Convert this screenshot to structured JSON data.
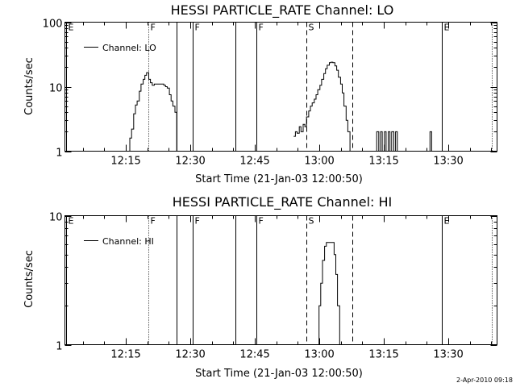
{
  "window": {
    "timestamp": "2-Apr-2010 09:18"
  },
  "colors": {
    "background": "#ffffff",
    "foreground": "#000000"
  },
  "chart_data": [
    {
      "type": "line",
      "title": "HESSI PARTICLE_RATE Channel: LO",
      "xlabel": "Start Time (21-Jan-03 12:00:50)",
      "ylabel": "Counts/sec",
      "yscale": "log",
      "xlim": [
        0,
        100.5
      ],
      "ylim": [
        1,
        100
      ],
      "x_units": "minutes after 12:00:50",
      "x_ticks": [
        14.17,
        29.17,
        44.17,
        59.17,
        74.17,
        89.17
      ],
      "x_tick_labels": [
        "12:15",
        "12:30",
        "12:45",
        "13:00",
        "13:15",
        "13:30"
      ],
      "y_ticks": [
        1,
        10,
        100
      ],
      "y_tick_labels": [
        "1",
        "10",
        "100"
      ],
      "legend": {
        "position": "top-left",
        "entries": [
          "Channel: LO"
        ]
      },
      "grid": false,
      "markers": [
        {
          "x": 0.3,
          "label": "E",
          "style": "solid"
        },
        {
          "x": 19.4,
          "label": "F",
          "style": "dotted"
        },
        {
          "x": 25.9,
          "label": "",
          "style": "solid"
        },
        {
          "x": 29.8,
          "label": "F",
          "style": "solid"
        },
        {
          "x": 39.7,
          "label": "",
          "style": "solid"
        },
        {
          "x": 44.6,
          "label": "F",
          "style": "solid"
        },
        {
          "x": 56.2,
          "label": "S",
          "style": "dashed"
        },
        {
          "x": 66.9,
          "label": "",
          "style": "dashed"
        },
        {
          "x": 87.6,
          "label": "E",
          "style": "solid"
        },
        {
          "x": 99.2,
          "label": "",
          "style": "dotted"
        }
      ],
      "series": [
        {
          "name": "Channel: LO",
          "segments": [
            [
              [
                14.6,
                1
              ],
              [
                15.1,
                1.6
              ],
              [
                15.5,
                2.2
              ],
              [
                16.0,
                3.8
              ],
              [
                16.4,
                5.2
              ],
              [
                16.8,
                6.0
              ],
              [
                17.3,
                8.5
              ],
              [
                17.7,
                11.0
              ],
              [
                18.2,
                13.0
              ],
              [
                18.6,
                15.0
              ],
              [
                19.0,
                16.5
              ],
              [
                19.5,
                13.0
              ],
              [
                19.9,
                11.5
              ],
              [
                20.3,
                10.5
              ],
              [
                20.8,
                11.0
              ],
              [
                21.2,
                11.0
              ],
              [
                21.6,
                11.0
              ],
              [
                22.1,
                11.0
              ],
              [
                22.5,
                11.0
              ],
              [
                23.0,
                10.5
              ],
              [
                23.4,
                10.0
              ],
              [
                23.8,
                9.5
              ],
              [
                24.3,
                7.5
              ],
              [
                24.7,
                6.0
              ],
              [
                25.1,
                5.0
              ],
              [
                25.6,
                4.0
              ],
              [
                26.0,
                1
              ]
            ],
            [
              [
                53.2,
                1.7
              ],
              [
                53.6,
                2.0
              ],
              [
                54.0,
                1.9
              ],
              [
                54.5,
                2.4
              ],
              [
                54.9,
                2.0
              ],
              [
                55.4,
                2.6
              ],
              [
                55.8,
                2.4
              ],
              [
                56.2,
                3.4
              ],
              [
                56.7,
                4.2
              ],
              [
                57.1,
                5.0
              ],
              [
                57.5,
                5.6
              ],
              [
                58.0,
                6.4
              ],
              [
                58.4,
                7.5
              ],
              [
                58.8,
                9.0
              ],
              [
                59.3,
                10.5
              ],
              [
                59.7,
                13.0
              ],
              [
                60.2,
                16.0
              ],
              [
                60.6,
                19.0
              ],
              [
                61.0,
                21.5
              ],
              [
                61.5,
                23.5
              ],
              [
                61.9,
                24.0
              ],
              [
                62.3,
                23.5
              ],
              [
                62.8,
                21.0
              ],
              [
                63.2,
                18.0
              ],
              [
                63.6,
                14.0
              ],
              [
                64.1,
                11.0
              ],
              [
                64.5,
                8.0
              ],
              [
                64.9,
                5.0
              ],
              [
                65.4,
                3.0
              ],
              [
                65.8,
                2.0
              ],
              [
                66.3,
                1
              ]
            ],
            [
              [
                72.1,
                1
              ],
              [
                72.5,
                2
              ],
              [
                73.0,
                1
              ],
              [
                73.4,
                2
              ],
              [
                73.8,
                1
              ],
              [
                74.3,
                2
              ],
              [
                74.7,
                1
              ],
              [
                75.2,
                2
              ],
              [
                75.6,
                1
              ],
              [
                76.0,
                2
              ],
              [
                76.5,
                1
              ],
              [
                76.9,
                2
              ],
              [
                77.3,
                1
              ],
              [
                78.2,
                1
              ]
            ],
            [
              [
                84.5,
                1
              ],
              [
                84.9,
                2
              ],
              [
                85.3,
                1
              ]
            ]
          ]
        }
      ]
    },
    {
      "type": "line",
      "title": "HESSI PARTICLE_RATE Channel: HI",
      "xlabel": "Start Time (21-Jan-03 12:00:50)",
      "ylabel": "Counts/sec",
      "yscale": "log",
      "xlim": [
        0,
        100.5
      ],
      "ylim": [
        1,
        10
      ],
      "x_units": "minutes after 12:00:50",
      "x_ticks": [
        14.17,
        29.17,
        44.17,
        59.17,
        74.17,
        89.17
      ],
      "x_tick_labels": [
        "12:15",
        "12:30",
        "12:45",
        "13:00",
        "13:15",
        "13:30"
      ],
      "y_ticks": [
        1,
        10
      ],
      "y_tick_labels": [
        "1",
        "10"
      ],
      "legend": {
        "position": "top-left",
        "entries": [
          "Channel: HI"
        ]
      },
      "grid": false,
      "markers": [
        {
          "x": 0.3,
          "label": "E",
          "style": "solid"
        },
        {
          "x": 19.4,
          "label": "F",
          "style": "dotted"
        },
        {
          "x": 25.9,
          "label": "",
          "style": "solid"
        },
        {
          "x": 29.8,
          "label": "F",
          "style": "solid"
        },
        {
          "x": 39.7,
          "label": "",
          "style": "solid"
        },
        {
          "x": 44.6,
          "label": "F",
          "style": "solid"
        },
        {
          "x": 56.2,
          "label": "S",
          "style": "dashed"
        },
        {
          "x": 66.9,
          "label": "",
          "style": "dashed"
        },
        {
          "x": 87.6,
          "label": "E",
          "style": "solid"
        },
        {
          "x": 99.2,
          "label": "",
          "style": "dotted"
        }
      ],
      "series": [
        {
          "name": "Channel: HI",
          "segments": [
            [
              [
                58.6,
                1
              ],
              [
                59.1,
                2.0
              ],
              [
                59.5,
                3.0
              ],
              [
                59.9,
                4.5
              ],
              [
                60.4,
                5.8
              ],
              [
                60.8,
                6.2
              ],
              [
                61.3,
                6.2
              ],
              [
                61.7,
                6.2
              ],
              [
                62.1,
                6.2
              ],
              [
                62.6,
                5.0
              ],
              [
                63.0,
                3.5
              ],
              [
                63.4,
                2.0
              ],
              [
                63.9,
                1
              ]
            ]
          ]
        }
      ]
    }
  ]
}
